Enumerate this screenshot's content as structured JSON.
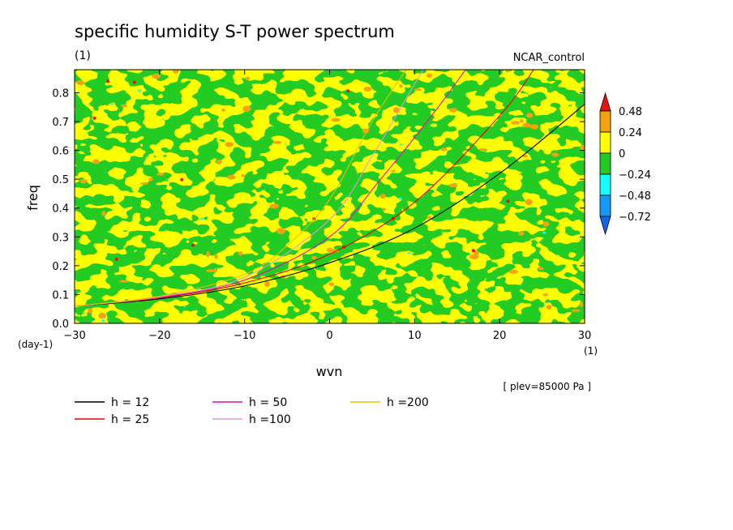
{
  "chart_data": {
    "type": "heatmap",
    "title": "specific humidity S-T power spectrum",
    "subtitle_left": "(1)",
    "subtitle_right": "NCAR_control",
    "xlabel": "wvn",
    "ylabel": "freq",
    "x_units": "(1)",
    "y_units": "(day-1)",
    "xlim": [
      -30,
      30
    ],
    "ylim": [
      0,
      0.88
    ],
    "x_ticks": [
      "-30",
      "-20",
      "-10",
      "0",
      "10",
      "20",
      "30"
    ],
    "y_ticks": [
      "0.0",
      "0.1",
      "0.2",
      "0.3",
      "0.4",
      "0.5",
      "0.6",
      "0.7",
      "0.8"
    ],
    "note": "[ plev=85000 Pa ]",
    "colorbar": {
      "labels": [
        "0.48",
        "0.24",
        "0",
        "-0.24",
        "-0.48",
        "-0.72"
      ],
      "colors": [
        "#ee1111",
        "#f5a20f",
        "#ffff00",
        "#22cc22",
        "#11ffff",
        "#1199ff",
        "#1166ee"
      ]
    },
    "dispersion_curves": [
      {
        "name": "h = 12",
        "color": "#000000",
        "x": [
          -30,
          -20,
          -10,
          0,
          10,
          20,
          30
        ],
        "y": [
          0.06,
          0.085,
          0.13,
          0.21,
          0.33,
          0.52,
          0.76
        ]
      },
      {
        "name": "h = 25",
        "color": "#ee0000",
        "x": [
          -30,
          -20,
          -10,
          0,
          10,
          20,
          24
        ],
        "y": [
          0.06,
          0.088,
          0.14,
          0.24,
          0.42,
          0.72,
          0.88
        ]
      },
      {
        "name": "h = 50",
        "color": "#dd11aa",
        "x": [
          -30,
          -20,
          -10,
          0,
          6,
          12,
          16
        ],
        "y": [
          0.06,
          0.09,
          0.15,
          0.3,
          0.5,
          0.72,
          0.88
        ]
      },
      {
        "name": "h =100",
        "color": "#dd99dd",
        "x": [
          -30,
          -20,
          -10,
          0,
          5,
          9,
          11
        ],
        "y": [
          0.06,
          0.092,
          0.16,
          0.36,
          0.58,
          0.78,
          0.88
        ]
      },
      {
        "name": "h =200",
        "color": "#eebb00",
        "x": [
          -30,
          -20,
          -10,
          -5,
          0,
          5,
          9
        ],
        "y": [
          0.06,
          0.094,
          0.17,
          0.27,
          0.43,
          0.7,
          0.88
        ]
      }
    ],
    "grid": false,
    "legend_position": "bottom-left"
  }
}
